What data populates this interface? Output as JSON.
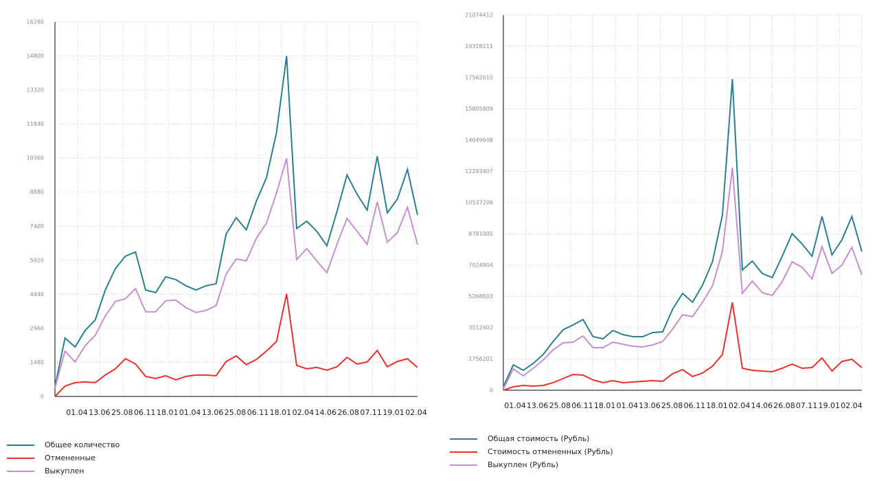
{
  "chart_data": [
    {
      "type": "line",
      "x_labels": [
        "01.04",
        "13.06",
        "25.08",
        "06.11",
        "18.01",
        "01.04",
        "13.06",
        "25.08",
        "06.11",
        "18.01",
        "02.04",
        "14.06",
        "26.08",
        "07.11",
        "19.01",
        "02.04"
      ],
      "ylim": [
        0,
        16280
      ],
      "yticks": [
        0,
        1480,
        2960,
        4440,
        5920,
        7400,
        8880,
        10360,
        11840,
        13320,
        14800,
        16280
      ],
      "grid": true,
      "series": [
        {
          "name": "Общее количество",
          "color": "#2a7f8f",
          "values": [
            420,
            2540,
            2150,
            2870,
            3320,
            4630,
            5560,
            6100,
            6280,
            4630,
            4510,
            5200,
            5080,
            4810,
            4630,
            4810,
            4900,
            7060,
            7770,
            7240,
            8490,
            9510,
            11480,
            14800,
            7300,
            7620,
            7180,
            6550,
            8040,
            9630,
            8790,
            8100,
            10440,
            7980,
            8580,
            9870,
            7890
          ]
        },
        {
          "name": "Отмененные",
          "color": "#ee2e2e",
          "values": [
            0,
            450,
            600,
            630,
            600,
            930,
            1200,
            1640,
            1410,
            870,
            780,
            900,
            720,
            870,
            930,
            930,
            900,
            1520,
            1760,
            1380,
            1610,
            1970,
            2390,
            4460,
            1350,
            1200,
            1260,
            1140,
            1290,
            1700,
            1410,
            1500,
            2000,
            1290,
            1520,
            1640,
            1260
          ]
        },
        {
          "name": "Выкуплен",
          "color": "#c58fd0",
          "values": [
            360,
            1970,
            1500,
            2210,
            2660,
            3500,
            4130,
            4250,
            4690,
            3680,
            3680,
            4160,
            4190,
            3860,
            3650,
            3740,
            3950,
            5320,
            5980,
            5890,
            6880,
            7530,
            8850,
            10350,
            5950,
            6430,
            5890,
            5380,
            6610,
            7740,
            7180,
            6610,
            8460,
            6700,
            7120,
            8220,
            6610
          ]
        }
      ]
    },
    {
      "type": "line",
      "x_labels": [
        "01.04",
        "13.06",
        "25.08",
        "06.11",
        "18.01",
        "01.04",
        "13.06",
        "25.08",
        "06.11",
        "18.01",
        "02.04",
        "14.06",
        "26.08",
        "07.11",
        "19.01",
        "02.04"
      ],
      "ylim": [
        0,
        21074412
      ],
      "yticks": [
        0,
        1756201,
        3512402,
        5268603,
        7024804,
        8781005,
        10537206,
        12293407,
        14049608,
        15805809,
        17562010,
        19318211,
        21074412
      ],
      "grid": true,
      "series": [
        {
          "name": "Общая стоимость (Рубль)",
          "color": "#2a7f8f",
          "values": [
            193000,
            1428000,
            1119000,
            1505000,
            2007000,
            2740000,
            3397000,
            3667000,
            3976000,
            3011000,
            2895000,
            3358000,
            3126000,
            3011000,
            3011000,
            3242000,
            3281000,
            4555000,
            5442000,
            4941000,
            5905000,
            7218000,
            9842000,
            17485000,
            6755000,
            7256000,
            6562000,
            6330000,
            7527000,
            8800000,
            8221000,
            7527000,
            9765000,
            7604000,
            8453000,
            9765000,
            7797000
          ]
        },
        {
          "name": "Стоимость отмененных (Рубль)",
          "color": "#ee2e2e",
          "values": [
            0,
            193000,
            270000,
            232000,
            270000,
            425000,
            656000,
            888000,
            849000,
            579000,
            425000,
            540000,
            425000,
            463000,
            502000,
            540000,
            502000,
            926000,
            1158000,
            772000,
            965000,
            1351000,
            2007000,
            4941000,
            1235000,
            1119000,
            1081000,
            1042000,
            1235000,
            1467000,
            1235000,
            1274000,
            1814000,
            1081000,
            1621000,
            1737000,
            1274000
          ]
        },
        {
          "name": "Выкуплен (Рубль)",
          "color": "#c58fd0",
          "values": [
            77000,
            1197000,
            811000,
            1235000,
            1698000,
            2277000,
            2663000,
            2702000,
            3049000,
            2393000,
            2393000,
            2702000,
            2586000,
            2470000,
            2432000,
            2547000,
            2740000,
            3435000,
            4246000,
            4130000,
            4941000,
            5867000,
            7797000,
            12506000,
            5442000,
            6137000,
            5481000,
            5327000,
            6098000,
            7218000,
            6909000,
            6253000,
            8067000,
            6562000,
            7025000,
            8028000,
            6485000
          ]
        }
      ]
    }
  ]
}
